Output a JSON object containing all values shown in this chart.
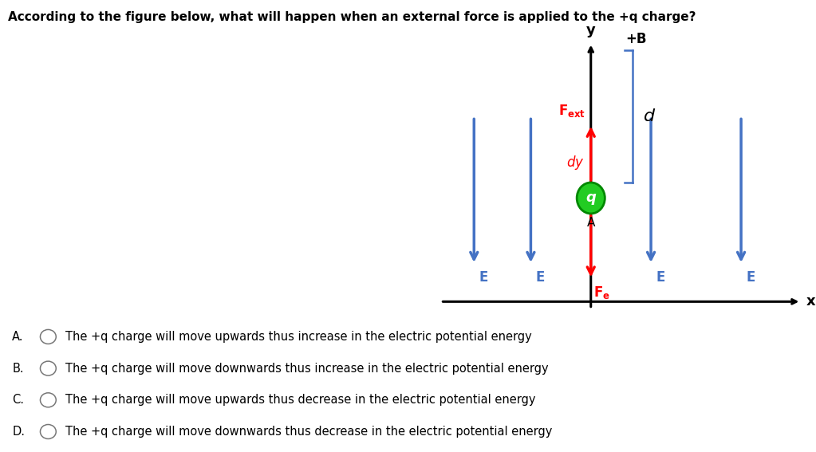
{
  "title": "According to the figure below, what will happen when an external force is applied to the +q charge?",
  "title_fontsize": 11,
  "title_fontweight": "bold",
  "bg_color": "#ffffff",
  "fig_width": 10.23,
  "fig_height": 5.67,
  "question_options": [
    {
      "label": "A.",
      "text": "The +q charge will move upwards thus increase in the electric potential energy"
    },
    {
      "label": "B.",
      "text": "The +q charge will move downwards thus increase in the electric potential energy"
    },
    {
      "label": "C.",
      "text": "The +q charge will move upwards thus decrease in the electric potential energy"
    },
    {
      "label": "D.",
      "text": "The +q charge will move downwards thus decrease in the electric potential energy"
    }
  ],
  "arrow_blue": "#4472C4",
  "arrow_red": "#FF0000",
  "charge_color": "#22CC22",
  "charge_outline": "#008800",
  "axis_color": "#000000"
}
